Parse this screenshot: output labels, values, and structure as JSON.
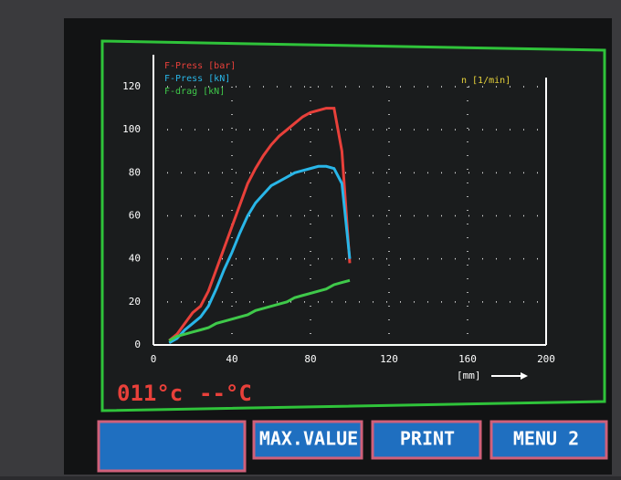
{
  "chart_data": {
    "type": "line",
    "x": [
      8,
      12,
      16,
      20,
      24,
      28,
      32,
      36,
      40,
      44,
      48,
      52,
      56,
      60,
      64,
      68,
      72,
      76,
      80,
      84,
      88,
      92,
      96,
      100
    ],
    "series": [
      {
        "name": "F-Press [bar]",
        "color": "#e8403a",
        "values": [
          2,
          5,
          10,
          15,
          18,
          25,
          35,
          45,
          55,
          65,
          75,
          82,
          88,
          93,
          97,
          100,
          103,
          106,
          108,
          109,
          110,
          110,
          90,
          38
        ]
      },
      {
        "name": "F-Press [kN]",
        "color": "#29b6e8",
        "values": [
          1,
          3,
          7,
          10,
          13,
          18,
          26,
          35,
          43,
          52,
          60,
          66,
          70,
          74,
          76,
          78,
          80,
          81,
          82,
          83,
          83,
          82,
          75,
          40
        ]
      },
      {
        "name": "F-drag [kN]",
        "color": "#3fc94a",
        "values": [
          2,
          4,
          5,
          6,
          7,
          8,
          10,
          11,
          12,
          13,
          14,
          16,
          17,
          18,
          19,
          20,
          22,
          23,
          24,
          25,
          26,
          28,
          29,
          30
        ]
      }
    ],
    "xlim": [
      0,
      200
    ],
    "xticks": [
      0,
      40,
      80,
      120,
      160,
      200
    ],
    "ylim": [
      0,
      120
    ],
    "yticks": [
      0,
      20,
      40,
      60,
      80,
      100,
      120
    ],
    "x_label": "[mm]",
    "annotation": "n [1/min]",
    "grid": true
  },
  "status": {
    "temp1": "011°c",
    "temp2": "--°C"
  },
  "buttons": [
    "MAX.VALUE",
    "PRINT",
    "MENU 2"
  ]
}
